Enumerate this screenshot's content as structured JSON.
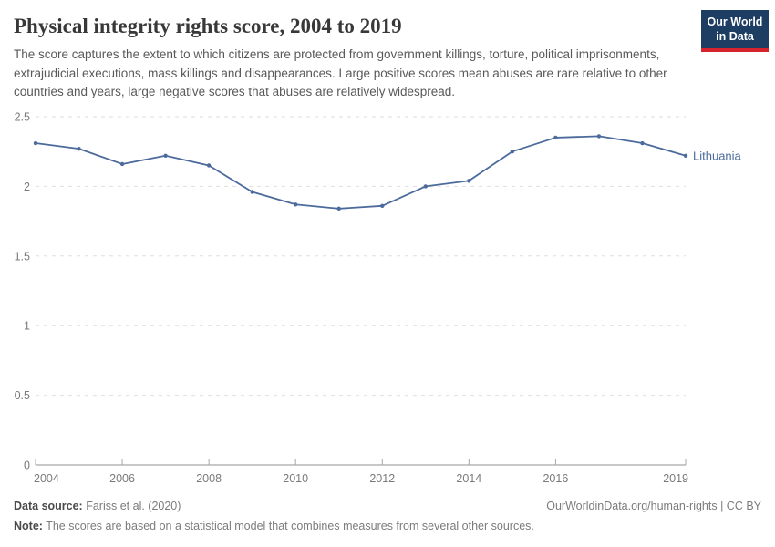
{
  "header": {
    "title": "Physical integrity rights score, 2004 to 2019",
    "subtitle": "The score captures the extent to which citizens are protected from government killings, torture, political imprisonments, extrajudicial executions, mass killings and disappearances. Large positive scores mean abuses are rare relative to other countries and years, large negative scores that abuses are relatively widespread.",
    "logo": {
      "line1": "Our World",
      "line2": "in Data",
      "bg_color": "#1d3d63",
      "stripe_color": "#d7232e"
    }
  },
  "chart_data": {
    "type": "line",
    "title": "Physical integrity rights score, 2004 to 2019",
    "x": [
      2004,
      2005,
      2006,
      2007,
      2008,
      2009,
      2010,
      2011,
      2012,
      2013,
      2014,
      2015,
      2016,
      2017,
      2018,
      2019
    ],
    "series": [
      {
        "name": "Lithuania",
        "color": "#4C6A9C",
        "values": [
          2.31,
          2.27,
          2.16,
          2.22,
          2.15,
          1.96,
          1.87,
          1.84,
          1.86,
          2.0,
          2.04,
          2.25,
          2.35,
          2.36,
          2.31,
          2.22
        ]
      }
    ],
    "xticks": [
      2004,
      2006,
      2008,
      2010,
      2012,
      2014,
      2016,
      2019
    ],
    "yticks": [
      0,
      0.5,
      1,
      1.5,
      2,
      2.5
    ],
    "xlim": [
      2004,
      2019
    ],
    "ylim": [
      0,
      2.5
    ],
    "grid": "horizontal-dashed",
    "legend_position": "end-of-line-label",
    "colors": {
      "grid": "#dedede",
      "axis": "#a7a7a7",
      "tick_label": "#7a7a7a"
    }
  },
  "footer": {
    "datasource_label": "Data source:",
    "datasource_value": "Fariss et al. (2020)",
    "license": "OurWorldinData.org/human-rights | CC BY",
    "note_label": "Note:",
    "note_value": "The scores are based on a statistical model that combines measures from several other sources."
  }
}
